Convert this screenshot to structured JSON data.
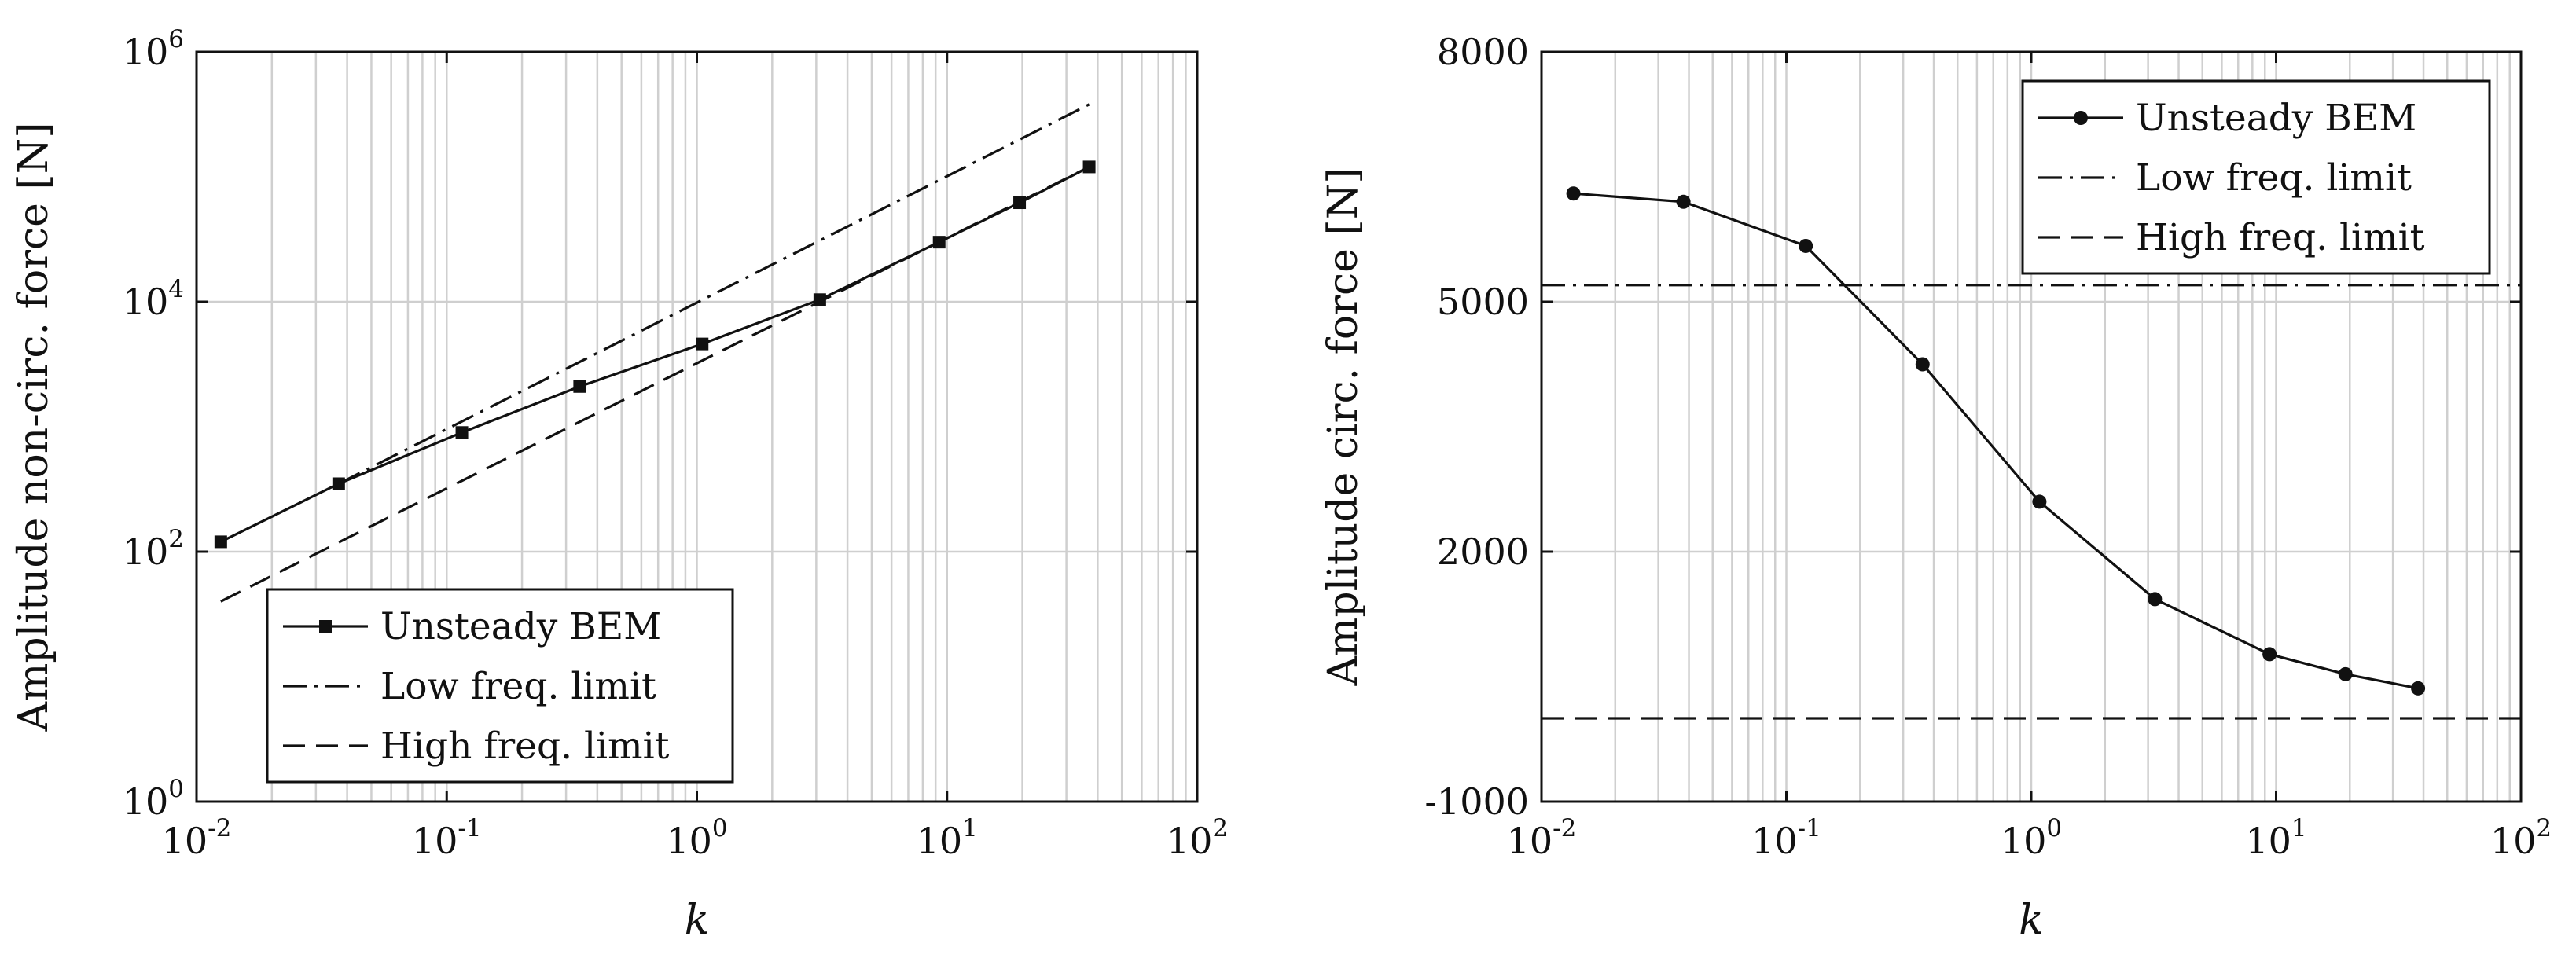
{
  "chart_data": [
    {
      "type": "line",
      "xscale": "log",
      "yscale": "log",
      "xlim": [
        0.01,
        100
      ],
      "ylim": [
        1,
        1000000
      ],
      "xticks": [
        0.01,
        0.1,
        1,
        10,
        100
      ],
      "xtick_labels": [
        {
          "base": "10",
          "exp": "-2"
        },
        {
          "base": "10",
          "exp": "-1"
        },
        {
          "base": "10",
          "exp": "0"
        },
        {
          "base": "10",
          "exp": "1"
        },
        {
          "base": "10",
          "exp": "2"
        }
      ],
      "yticks": [
        1,
        100,
        10000,
        1000000
      ],
      "ytick_labels": [
        {
          "base": "10",
          "exp": "0"
        },
        {
          "base": "10",
          "exp": "2"
        },
        {
          "base": "10",
          "exp": "4"
        },
        {
          "base": "10",
          "exp": "6"
        }
      ],
      "xlabel": "k",
      "ylabel": "Amplitude non-circ. force [N]",
      "grid": "major and minor (x), major (y)",
      "legend_position": "bottom-left",
      "series": [
        {
          "name": "Unsteady BEM",
          "style": "solid",
          "marker": "square",
          "x": [
            0.0125,
            0.037,
            0.115,
            0.34,
            1.05,
            3.1,
            9.3,
            19.5,
            37
          ],
          "y": [
            120,
            350,
            900,
            2100,
            4600,
            10400,
            30000,
            62000,
            120000
          ]
        },
        {
          "name": "Low freq. limit",
          "style": "dashdot",
          "x": [
            0.037,
            37
          ],
          "y": [
            350,
            380000
          ]
        },
        {
          "name": "High freq. limit",
          "style": "dashed",
          "x": [
            0.0125,
            37
          ],
          "y": [
            40,
            120000
          ]
        }
      ]
    },
    {
      "type": "line",
      "xscale": "log",
      "yscale": "linear",
      "xlim": [
        0.01,
        100
      ],
      "ylim": [
        -1000,
        8000
      ],
      "xticks": [
        0.01,
        0.1,
        1,
        10,
        100
      ],
      "xtick_labels": [
        {
          "base": "10",
          "exp": "-2"
        },
        {
          "base": "10",
          "exp": "-1"
        },
        {
          "base": "10",
          "exp": "0"
        },
        {
          "base": "10",
          "exp": "1"
        },
        {
          "base": "10",
          "exp": "2"
        }
      ],
      "yticks": [
        -1000,
        2000,
        5000,
        8000
      ],
      "ytick_labels": [
        "-1000",
        "2000",
        "5000",
        "8000"
      ],
      "xlabel": "k",
      "ylabel": "Amplitude circ. force [N]",
      "grid": "major and minor (x), major (y)",
      "legend_position": "top-right",
      "series": [
        {
          "name": "Unsteady BEM",
          "style": "solid",
          "marker": "circle",
          "x": [
            0.0135,
            0.038,
            0.12,
            0.36,
            1.08,
            3.2,
            9.4,
            19.2,
            38
          ],
          "y": [
            6300,
            6200,
            5670,
            4250,
            2600,
            1430,
            770,
            530,
            360
          ]
        },
        {
          "name": "Low freq. limit",
          "style": "dashdot",
          "x": [
            0.01,
            100
          ],
          "y": [
            5200,
            5200
          ]
        },
        {
          "name": "High freq. limit",
          "style": "dashed",
          "x": [
            0.01,
            100
          ],
          "y": [
            0,
            0
          ]
        }
      ]
    }
  ]
}
